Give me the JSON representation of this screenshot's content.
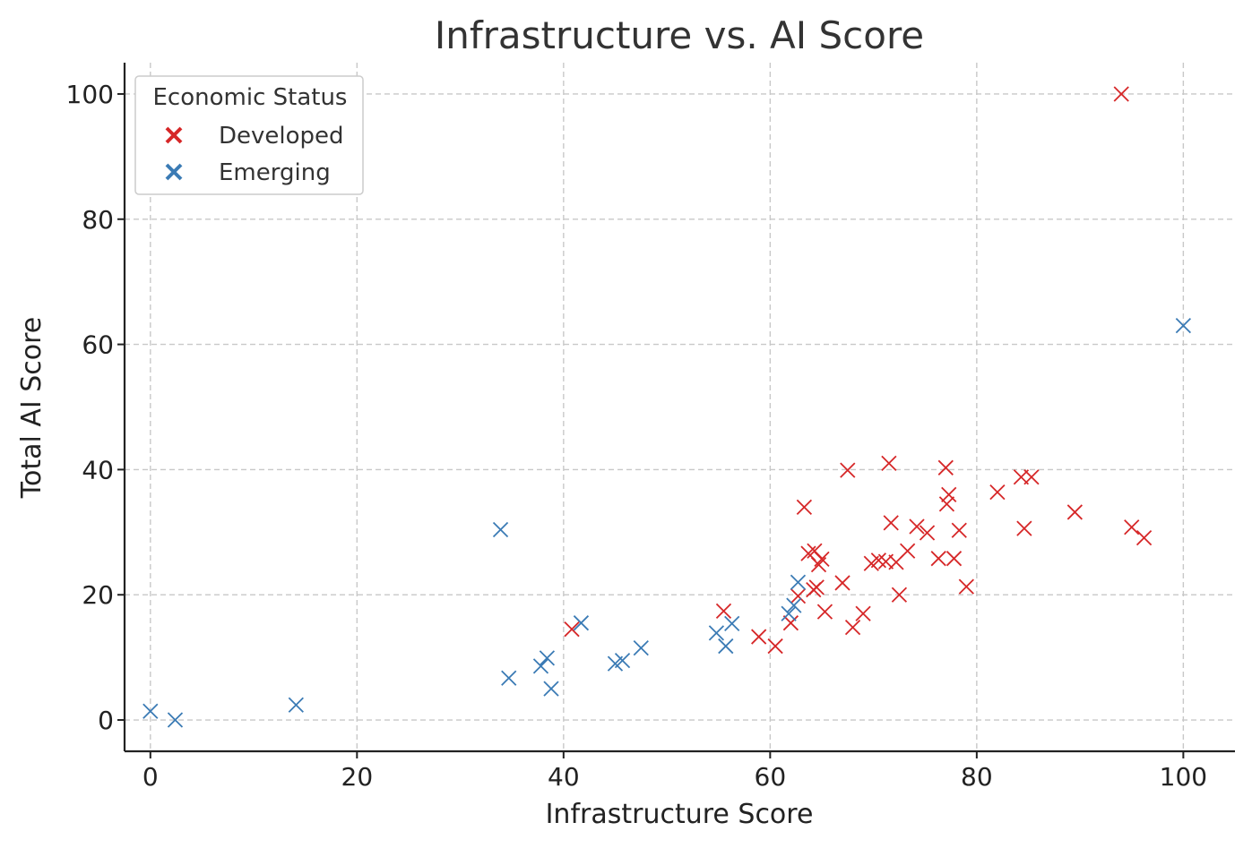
{
  "chart_data": {
    "type": "scatter",
    "title": "Infrastructure vs. AI Score",
    "xlabel": "Infrastructure Score",
    "ylabel": "Total AI Score",
    "xlim": [
      -2.5,
      105
    ],
    "ylim": [
      -5,
      105
    ],
    "xticks": [
      "0",
      "20",
      "40",
      "60",
      "80",
      "100"
    ],
    "yticks": [
      "0",
      "20",
      "40",
      "60",
      "80",
      "100"
    ],
    "grid": true,
    "marker": "x",
    "legend": {
      "title": "Economic Status",
      "position": "top-left"
    },
    "series": [
      {
        "name": "Developed",
        "color": "#d62728",
        "points": [
          [
            94,
            100
          ],
          [
            40.8,
            14.5
          ],
          [
            55.5,
            17.4
          ],
          [
            58.9,
            13.3
          ],
          [
            60.5,
            11.8
          ],
          [
            62,
            15.5
          ],
          [
            62.7,
            19.8
          ],
          [
            63.3,
            34
          ],
          [
            63.7,
            26.6
          ],
          [
            64.2,
            20.8
          ],
          [
            64.3,
            27
          ],
          [
            64.5,
            21.2
          ],
          [
            64.7,
            24.8
          ],
          [
            65,
            25.7
          ],
          [
            65.3,
            17.3
          ],
          [
            67,
            21.9
          ],
          [
            67.5,
            39.9
          ],
          [
            68,
            14.8
          ],
          [
            69,
            17
          ],
          [
            69.8,
            25
          ],
          [
            70.5,
            25.5
          ],
          [
            71.2,
            25.3
          ],
          [
            71.5,
            41
          ],
          [
            71.7,
            31.5
          ],
          [
            72.2,
            25.2
          ],
          [
            72.5,
            20
          ],
          [
            73.3,
            27
          ],
          [
            74.2,
            30.9
          ],
          [
            75.2,
            29.9
          ],
          [
            76.3,
            25.8
          ],
          [
            77,
            40.3
          ],
          [
            77.1,
            34.5
          ],
          [
            77.3,
            36
          ],
          [
            77.8,
            25.8
          ],
          [
            78.3,
            30.3
          ],
          [
            79,
            21.3
          ],
          [
            82,
            36.4
          ],
          [
            84.3,
            38.8
          ],
          [
            84.6,
            30.6
          ],
          [
            85.3,
            38.8
          ],
          [
            89.5,
            33.2
          ],
          [
            95,
            30.8
          ],
          [
            96.2,
            29.1
          ]
        ]
      },
      {
        "name": "Emerging",
        "color": "#3b7bb5",
        "points": [
          [
            0,
            1.4
          ],
          [
            2.4,
            0
          ],
          [
            14.1,
            2.4
          ],
          [
            33.9,
            30.4
          ],
          [
            34.7,
            6.7
          ],
          [
            37.8,
            8.6
          ],
          [
            38.4,
            9.9
          ],
          [
            38.8,
            5
          ],
          [
            41.7,
            15.5
          ],
          [
            45,
            9
          ],
          [
            45.7,
            9.5
          ],
          [
            47.5,
            11.5
          ],
          [
            54.8,
            13.9
          ],
          [
            55.7,
            11.8
          ],
          [
            56.3,
            15.4
          ],
          [
            61.8,
            17
          ],
          [
            62.3,
            18.3
          ],
          [
            62.7,
            22
          ],
          [
            100,
            63
          ]
        ]
      }
    ]
  }
}
